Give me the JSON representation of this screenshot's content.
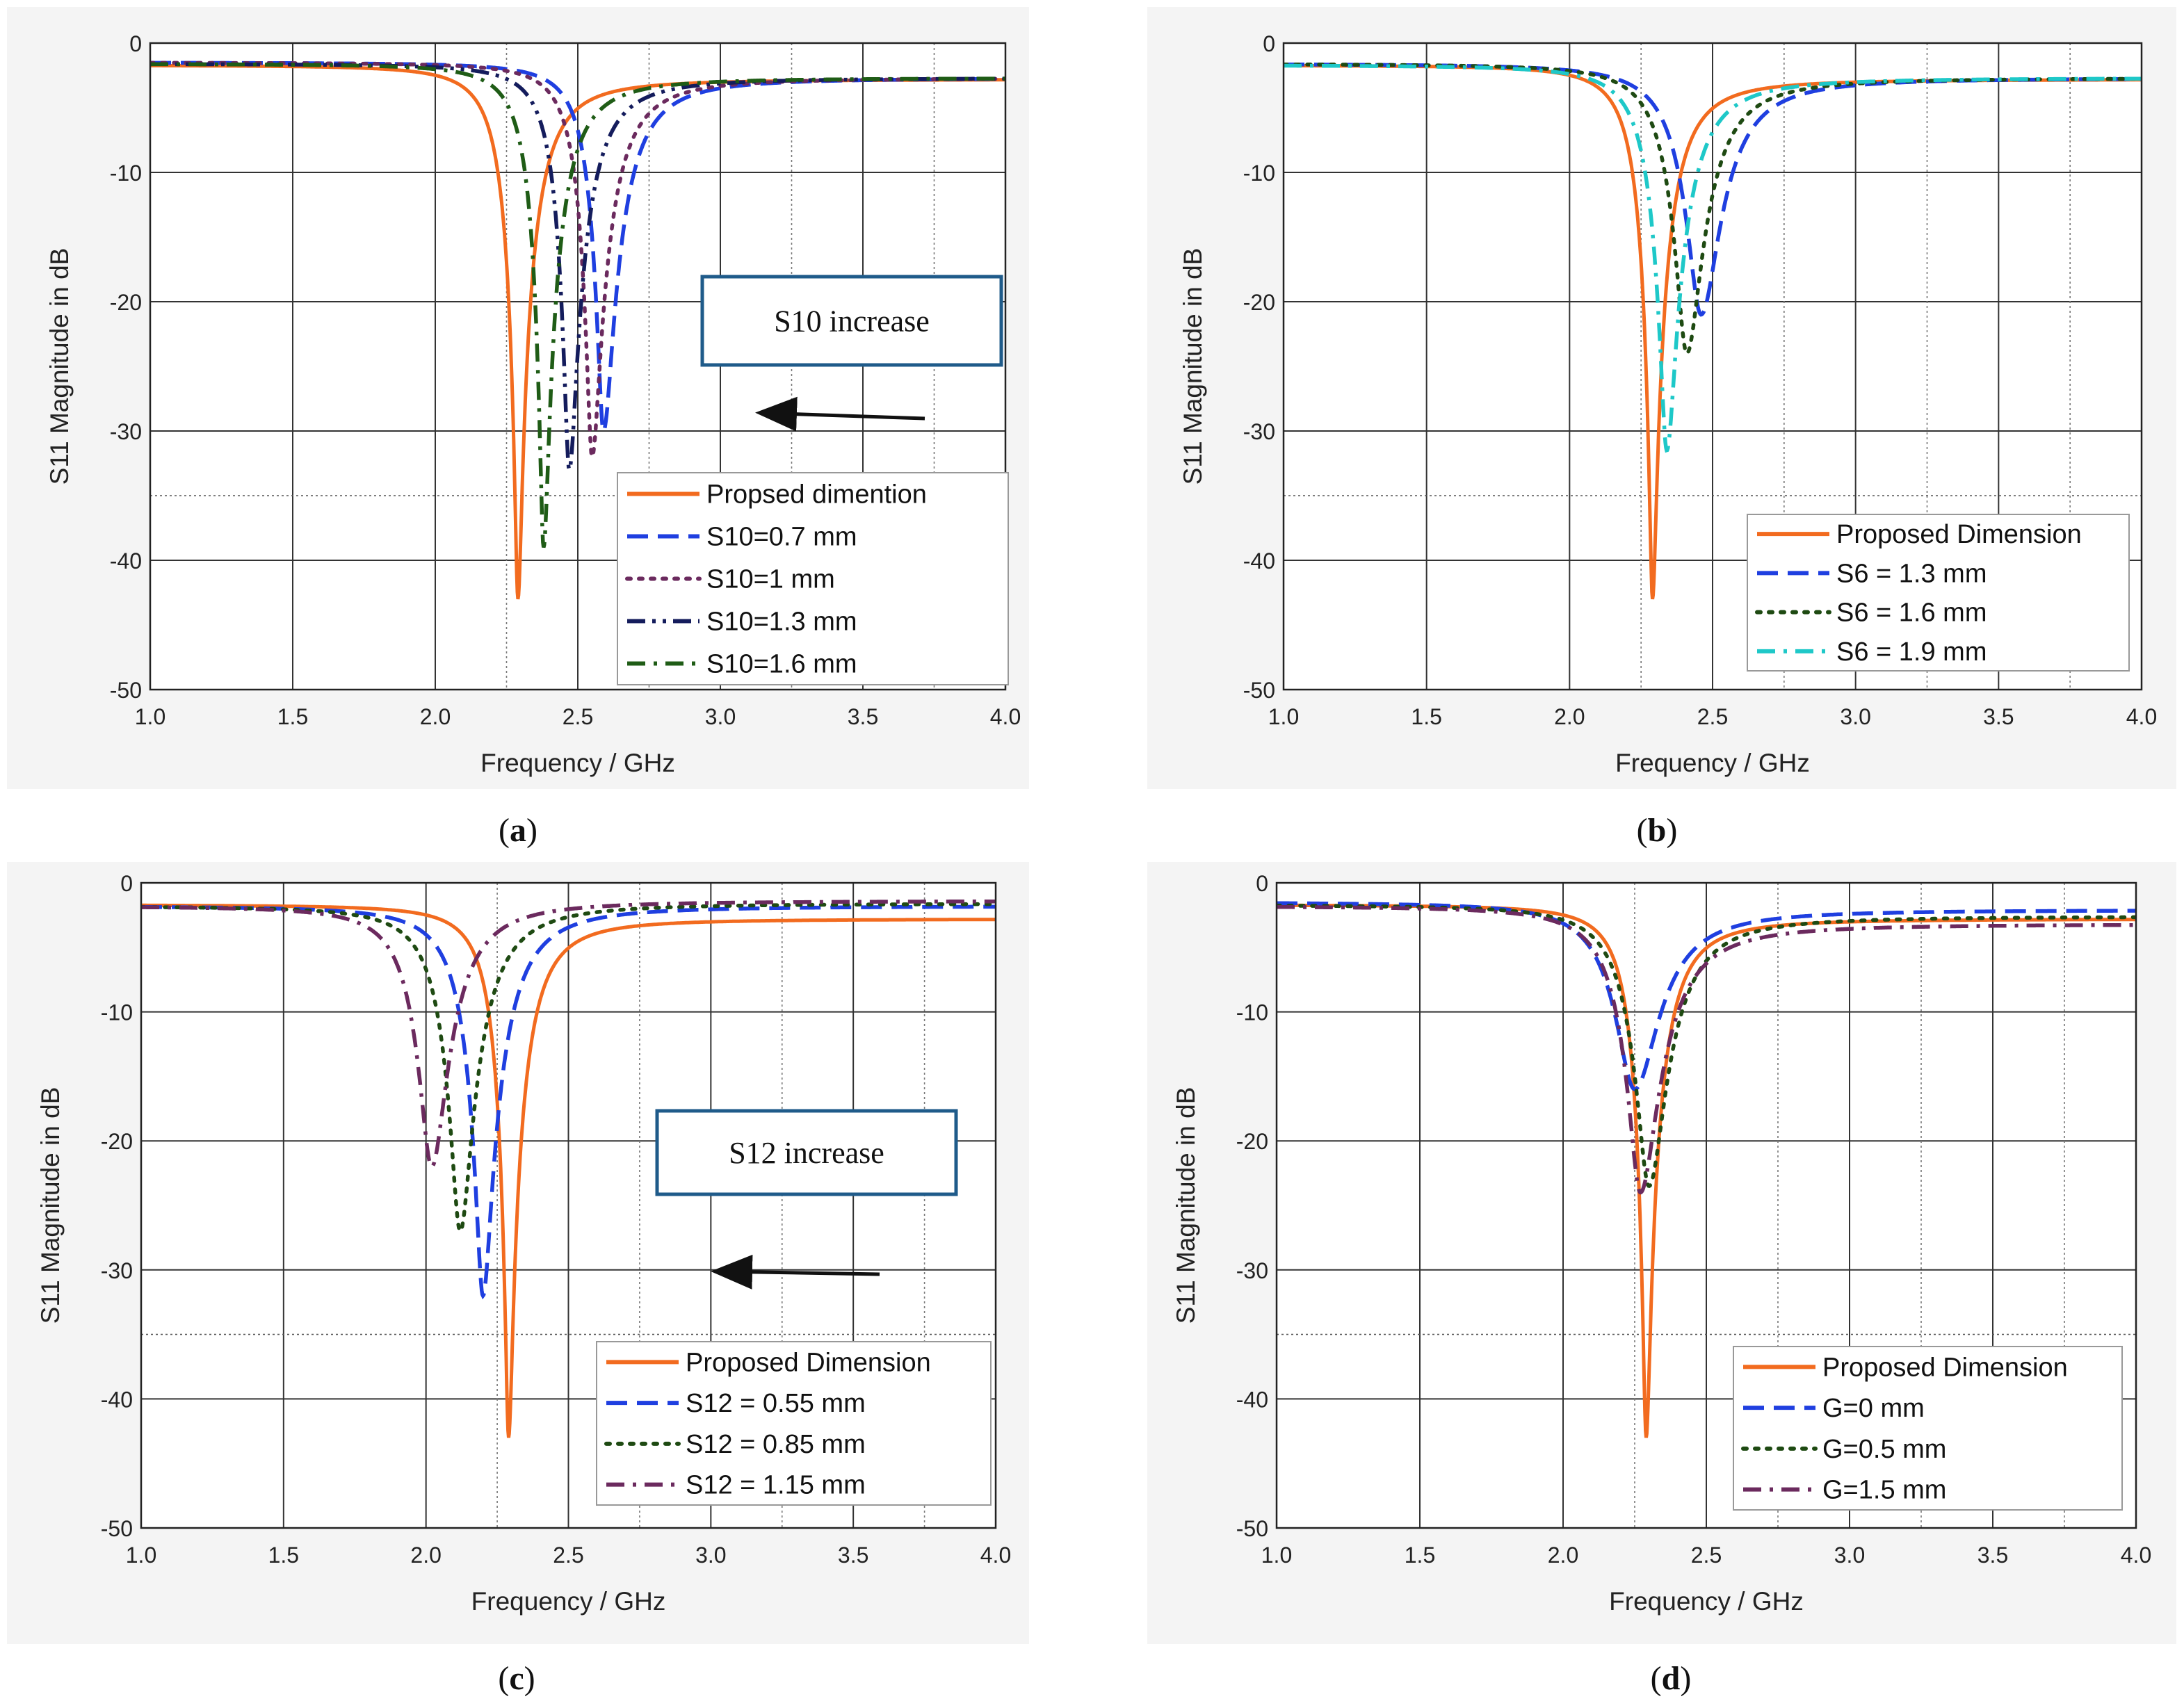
{
  "figure": {
    "captions": [
      "(",
      "a",
      ")",
      "(",
      "b",
      ")",
      "(",
      "c",
      ")",
      "(",
      "d",
      ")"
    ]
  },
  "colors": {
    "proposed": "#f26b1f",
    "blue": "#1f3fe0",
    "purple": "#6b2a5e",
    "navy": "#141c5c",
    "green": "#1f5c16",
    "darkgreen": "#1e4a12",
    "cyan": "#1ec8c8",
    "annotation_border": "#1f5b8a"
  },
  "chart_data": [
    {
      "type": "line",
      "panel": "a",
      "caption_letter": "a",
      "xlabel": "Frequency / GHz",
      "ylabel": "S11 Magnitude in dB",
      "xlim": [
        1.0,
        4.0
      ],
      "ylim": [
        -50,
        0
      ],
      "x_ticks": [
        "1.0",
        "1.5",
        "2.0",
        "2.5",
        "3.0",
        "3.5",
        "4.0"
      ],
      "y_ticks": [
        "0",
        "-10",
        "-20",
        "-30",
        "-40",
        "-50"
      ],
      "reference_line_db": -35,
      "reference_line_ghz": 2.25,
      "minor_dotted_x": [
        2.75,
        3.25,
        3.75
      ],
      "legend_position": "bottom-right",
      "annotation": {
        "text": "S10 increase",
        "arrow_direction": "left"
      },
      "series": [
        {
          "name": "Propsed dimention",
          "style": "solid",
          "color_key": "proposed",
          "f0": 2.29,
          "min_db": -43.0,
          "base_db": -1.7,
          "high_db": -2.8,
          "bw_low": 0.09,
          "bw_high": 0.115
        },
        {
          "name": "S10=0.7 mm",
          "style": "dash",
          "color_key": "blue",
          "f0": 2.59,
          "min_db": -30.0,
          "base_db": -1.5,
          "high_db": -2.7,
          "bw_low": 0.085,
          "bw_high": 0.13
        },
        {
          "name": "S10=1 mm",
          "style": "dot",
          "color_key": "purple",
          "f0": 2.55,
          "min_db": -32.0,
          "base_db": -1.5,
          "high_db": -2.7,
          "bw_low": 0.085,
          "bw_high": 0.125
        },
        {
          "name": "S10=1.3 mm",
          "style": "dashdotdot",
          "color_key": "navy",
          "f0": 2.47,
          "min_db": -33.0,
          "base_db": -1.6,
          "high_db": -2.7,
          "bw_low": 0.085,
          "bw_high": 0.12
        },
        {
          "name": "S10=1.6 mm",
          "style": "dashdot",
          "color_key": "green",
          "f0": 2.38,
          "min_db": -39.0,
          "base_db": -1.6,
          "high_db": -2.7,
          "bw_low": 0.085,
          "bw_high": 0.115
        }
      ]
    },
    {
      "type": "line",
      "panel": "b",
      "caption_letter": "b",
      "xlabel": "Frequency / GHz",
      "ylabel": "S11 Magnitude in dB",
      "xlim": [
        1.0,
        4.0
      ],
      "ylim": [
        -50,
        0
      ],
      "x_ticks": [
        "1.0",
        "1.5",
        "2.0",
        "2.5",
        "3.0",
        "3.5",
        "4.0"
      ],
      "y_ticks": [
        "0",
        "-10",
        "-20",
        "-30",
        "-40",
        "-50"
      ],
      "reference_line_db": -35,
      "reference_line_ghz": 2.25,
      "minor_dotted_x": [
        2.75,
        3.25,
        3.75
      ],
      "legend_position": "bottom-right",
      "series": [
        {
          "name": "Proposed Dimension",
          "style": "solid",
          "color_key": "proposed",
          "f0": 2.29,
          "min_db": -43.0,
          "base_db": -1.7,
          "high_db": -2.8,
          "bw_low": 0.09,
          "bw_high": 0.115
        },
        {
          "name": "S6 = 1.3 mm",
          "style": "dash",
          "color_key": "blue",
          "f0": 2.46,
          "min_db": -21.0,
          "base_db": -1.6,
          "high_db": -2.7,
          "bw_low": 0.12,
          "bw_high": 0.15
        },
        {
          "name": "S6 = 1.6 mm",
          "style": "dot",
          "color_key": "darkgreen",
          "f0": 2.41,
          "min_db": -24.0,
          "base_db": -1.6,
          "high_db": -2.7,
          "bw_low": 0.11,
          "bw_high": 0.14
        },
        {
          "name": "S6 = 1.9 mm",
          "style": "dashdot",
          "color_key": "cyan",
          "f0": 2.34,
          "min_db": -31.5,
          "base_db": -1.7,
          "high_db": -2.7,
          "bw_low": 0.1,
          "bw_high": 0.13
        }
      ]
    },
    {
      "type": "line",
      "panel": "c",
      "caption_letter": "c",
      "xlabel": "Frequency / GHz",
      "ylabel": "S11 Magnitude in dB",
      "xlim": [
        1.0,
        4.0
      ],
      "ylim": [
        -50,
        0
      ],
      "x_ticks": [
        "1.0",
        "1.5",
        "2.0",
        "2.5",
        "3.0",
        "3.5",
        "4.0"
      ],
      "y_ticks": [
        "0",
        "-10",
        "-20",
        "-30",
        "-40",
        "-50"
      ],
      "reference_line_db": -35,
      "reference_line_ghz": 2.25,
      "minor_dotted_x": [
        2.75,
        3.25,
        3.75
      ],
      "legend_position": "bottom-right",
      "annotation": {
        "text": "S12 increase",
        "arrow_direction": "left"
      },
      "series": [
        {
          "name": "Proposed Dimension",
          "style": "solid",
          "color_key": "proposed",
          "f0": 2.29,
          "min_db": -43.0,
          "base_db": -1.7,
          "high_db": -2.8,
          "bw_low": 0.09,
          "bw_high": 0.115
        },
        {
          "name": "S12 = 0.55 mm",
          "style": "dash",
          "color_key": "blue",
          "f0": 2.2,
          "min_db": -32.0,
          "base_db": -1.8,
          "high_db": -1.8,
          "bw_low": 0.11,
          "bw_high": 0.14
        },
        {
          "name": "S12 = 0.85 mm",
          "style": "dot",
          "color_key": "darkgreen",
          "f0": 2.12,
          "min_db": -27.0,
          "base_db": -1.8,
          "high_db": -1.6,
          "bw_low": 0.11,
          "bw_high": 0.14
        },
        {
          "name": "S12 = 1.15 mm",
          "style": "dashdot",
          "color_key": "purple",
          "f0": 2.02,
          "min_db": -22.0,
          "base_db": -1.8,
          "high_db": -1.4,
          "bw_low": 0.11,
          "bw_high": 0.14
        }
      ]
    },
    {
      "type": "line",
      "panel": "d",
      "caption_letter": "d",
      "xlabel": "Frequency / GHz",
      "ylabel": "S11 Magnitude in dB",
      "xlim": [
        1.0,
        4.0
      ],
      "ylim": [
        -50,
        0
      ],
      "x_ticks": [
        "1.0",
        "1.5",
        "2.0",
        "2.5",
        "3.0",
        "3.5",
        "4.0"
      ],
      "y_ticks": [
        "0",
        "-10",
        "-20",
        "-30",
        "-40",
        "-50"
      ],
      "reference_line_db": -35,
      "reference_line_ghz": 2.25,
      "minor_dotted_x": [
        2.75,
        3.25,
        3.75
      ],
      "legend_position": "bottom-right",
      "series": [
        {
          "name": "Proposed Dimension",
          "style": "solid",
          "color_key": "proposed",
          "f0": 2.29,
          "min_db": -43.0,
          "base_db": -1.7,
          "high_db": -2.8,
          "bw_low": 0.09,
          "bw_high": 0.115
        },
        {
          "name": "G=0 mm",
          "style": "dash",
          "color_key": "blue",
          "f0": 2.25,
          "min_db": -16.0,
          "base_db": -1.5,
          "high_db": -2.1,
          "bw_low": 0.13,
          "bw_high": 0.16
        },
        {
          "name": "G=0.5 mm",
          "style": "dot",
          "color_key": "darkgreen",
          "f0": 2.3,
          "min_db": -23.5,
          "base_db": -1.7,
          "high_db": -2.6,
          "bw_low": 0.12,
          "bw_high": 0.15
        },
        {
          "name": "G=1.5 mm",
          "style": "dashdot",
          "color_key": "purple",
          "f0": 2.27,
          "min_db": -24.0,
          "base_db": -1.8,
          "high_db": -3.2,
          "bw_low": 0.12,
          "bw_high": 0.16
        }
      ]
    }
  ]
}
